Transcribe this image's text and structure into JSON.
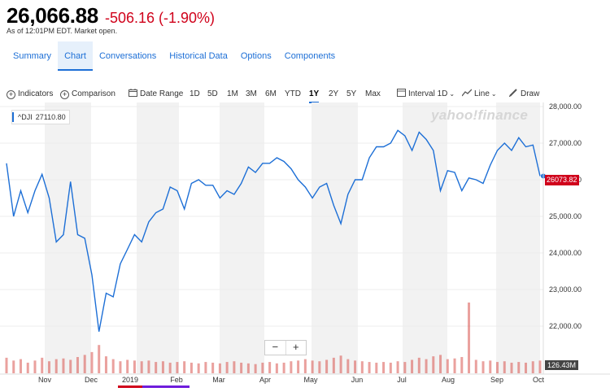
{
  "quote": {
    "price": "26,066.88",
    "change": "-506.16 (-1.90%)",
    "as_of": "As of 12:01PM EDT. Market open."
  },
  "tabs": [
    {
      "label": "Summary"
    },
    {
      "label": "Chart",
      "active": true
    },
    {
      "label": "Conversations"
    },
    {
      "label": "Historical Data"
    },
    {
      "label": "Options"
    },
    {
      "label": "Components"
    }
  ],
  "toolbar": {
    "indicators": "Indicators",
    "comparison": "Comparison",
    "date_range": "Date Range",
    "ranges": [
      "1D",
      "5D",
      "1M",
      "3M",
      "6M",
      "YTD",
      "1Y",
      "2Y",
      "5Y",
      "Max"
    ],
    "selected_range": "1Y",
    "interval_label": "Interval",
    "interval_value": "1D",
    "chart_type": "Line",
    "draw": "Draw"
  },
  "chart": {
    "watermark": "yahoo!finance",
    "legend_symbol": "^DJI",
    "legend_value": "27110.80",
    "current_price_label": "26073.82",
    "volume_label": "126.43M",
    "zoom_out": "−",
    "zoom_in": "+"
  },
  "chart_data": {
    "type": "line",
    "series": [
      {
        "name": "^DJI",
        "color": "#1d6fd6",
        "values": [
          26450,
          25000,
          25700,
          25100,
          25700,
          26150,
          25500,
          24300,
          24500,
          25950,
          24500,
          24400,
          23400,
          21850,
          22900,
          22800,
          23700,
          24100,
          24500,
          24300,
          24850,
          25100,
          25200,
          25800,
          25700,
          25200,
          25900,
          26000,
          25850,
          25850,
          25500,
          25700,
          25600,
          25900,
          26350,
          26200,
          26450,
          26450,
          26600,
          26500,
          26300,
          26000,
          25800,
          25500,
          25800,
          25900,
          25300,
          24800,
          25600,
          26000,
          26000,
          26600,
          26900,
          26900,
          27000,
          27350,
          27200,
          26800,
          27300,
          27100,
          26800,
          25700,
          26250,
          26200,
          25700,
          26050,
          26000,
          25900,
          26400,
          26800,
          27000,
          26800,
          27150,
          26900,
          26950,
          26100
        ]
      }
    ],
    "x_labels": [
      "Nov",
      "Dec",
      "2019",
      "Feb",
      "Mar",
      "Apr",
      "May",
      "Jun",
      "Jul",
      "Aug",
      "Sep",
      "Oct"
    ],
    "y_ticks": [
      "28,000.00",
      "27,000.00",
      "26,000.00",
      "25,000.00",
      "24,000.00",
      "23,000.00",
      "22,000.00"
    ],
    "ylim": [
      21400,
      28000
    ],
    "volume": {
      "values": [
        22,
        18,
        20,
        15,
        18,
        22,
        17,
        20,
        21,
        19,
        23,
        26,
        30,
        40,
        24,
        20,
        17,
        19,
        18,
        17,
        18,
        16,
        17,
        15,
        16,
        17,
        15,
        14,
        16,
        15,
        14,
        16,
        17,
        15,
        14,
        13,
        15,
        16,
        14,
        15,
        17,
        18,
        20,
        18,
        17,
        19,
        22,
        25,
        20,
        18,
        17,
        16,
        15,
        16,
        15,
        17,
        16,
        19,
        22,
        20,
        24,
        26,
        20,
        21,
        23,
        100,
        19,
        17,
        18,
        16,
        17,
        15,
        16,
        15,
        17,
        18
      ],
      "color": "#d9534f"
    }
  }
}
